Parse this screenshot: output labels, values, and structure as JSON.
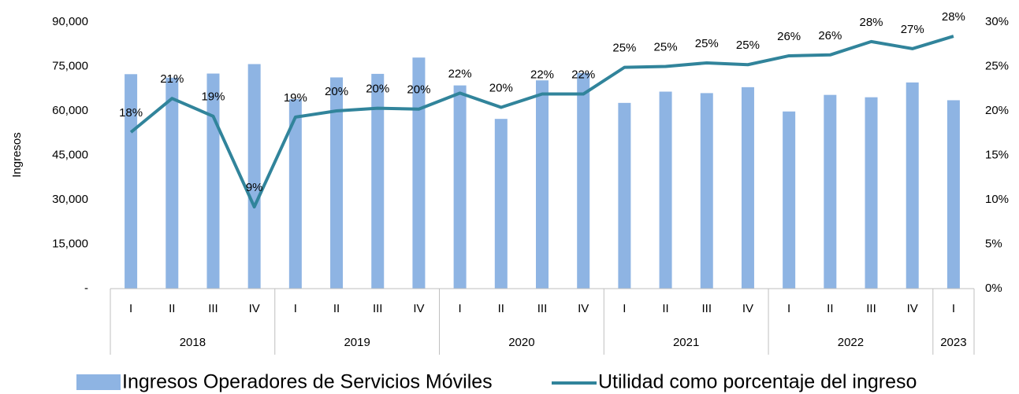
{
  "chart_data": {
    "type": "bar_line",
    "y_label": "Ingresos",
    "groups": [
      {
        "label": "2018",
        "size": 4
      },
      {
        "label": "2019",
        "size": 4
      },
      {
        "label": "2020",
        "size": 4
      },
      {
        "label": "2021",
        "size": 4
      },
      {
        "label": "2022",
        "size": 4
      },
      {
        "label": "2023",
        "size": 1
      }
    ],
    "categories": [
      "I",
      "II",
      "III",
      "IV",
      "I",
      "II",
      "III",
      "IV",
      "I",
      "II",
      "III",
      "IV",
      "I",
      "II",
      "III",
      "IV",
      "I",
      "II",
      "III",
      "IV",
      "I"
    ],
    "series": [
      {
        "name": "Ingresos Operadores de Servicios Móviles",
        "type": "bar",
        "color": "#8eb4e3",
        "axis": "y",
        "values": [
          72400,
          71200,
          72600,
          75800,
          64000,
          71300,
          72500,
          78000,
          68600,
          57300,
          70300,
          72800,
          62700,
          66500,
          66000,
          68000,
          59800,
          65400,
          64600,
          69600,
          63600
        ]
      },
      {
        "name": "Utilidad como porcentaje del ingreso",
        "type": "line",
        "color": "#31849b",
        "axis": "y2",
        "values": [
          17.6,
          21.4,
          19.4,
          9.2,
          19.3,
          20.0,
          20.3,
          20.2,
          22.0,
          20.4,
          21.9,
          21.9,
          24.9,
          25.0,
          25.4,
          25.2,
          26.2,
          26.3,
          27.8,
          27.0,
          28.4
        ],
        "value_labels": [
          "18%",
          "21%",
          "19%",
          "9%",
          "19%",
          "20%",
          "20%",
          "20%",
          "22%",
          "20%",
          "22%",
          "22%",
          "25%",
          "25%",
          "25%",
          "25%",
          "26%",
          "26%",
          "28%",
          "27%",
          "28%"
        ]
      }
    ],
    "ylim": [
      0,
      90000
    ],
    "yticks": [
      {
        "value": 0,
        "label": "-"
      },
      {
        "value": 15000,
        "label": "15,000"
      },
      {
        "value": 30000,
        "label": "30,000"
      },
      {
        "value": 45000,
        "label": "45,000"
      },
      {
        "value": 60000,
        "label": "60,000"
      },
      {
        "value": 75000,
        "label": "75,000"
      },
      {
        "value": 90000,
        "label": "90,000"
      }
    ],
    "y2lim": [
      0,
      30
    ],
    "y2ticks": [
      {
        "value": 0,
        "label": "0%"
      },
      {
        "value": 5,
        "label": "5%"
      },
      {
        "value": 10,
        "label": "10%"
      },
      {
        "value": 15,
        "label": "15%"
      },
      {
        "value": 20,
        "label": "20%"
      },
      {
        "value": 25,
        "label": "25%"
      },
      {
        "value": 30,
        "label": "30%"
      }
    ],
    "legend": "bottom"
  }
}
